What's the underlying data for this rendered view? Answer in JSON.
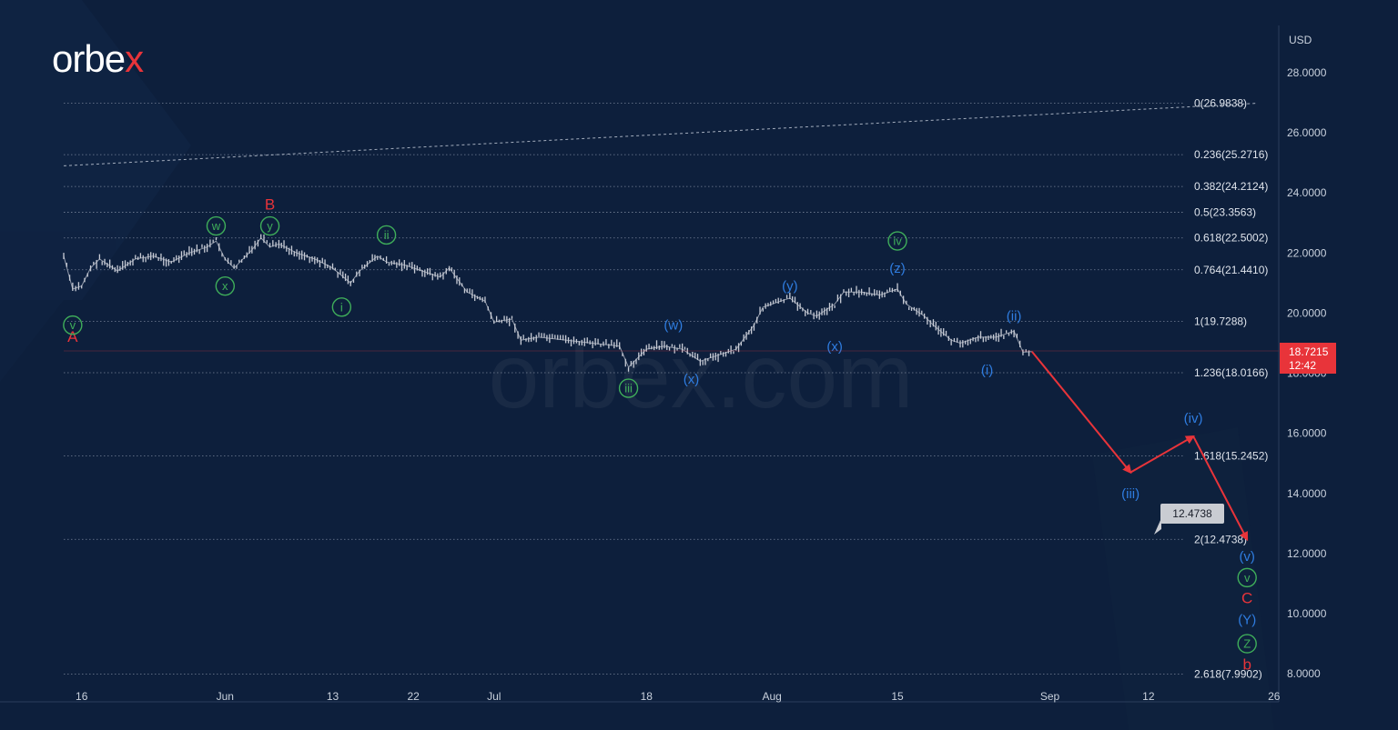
{
  "brand": {
    "logo_text_main": "orbe",
    "logo_text_accent": "x",
    "watermark": "orbex.com",
    "accent_color": "#e8343a"
  },
  "colors": {
    "background": "#0d1f3c",
    "candle": "#c8ccd6",
    "fib_line": "#8a94a8",
    "green_wave": "#3fae5a",
    "blue_wave": "#2f7de1",
    "red_wave": "#e8343a",
    "price_tag": "#e8343a",
    "target_tag": "#c9ccd2"
  },
  "price_axis": {
    "currency": "USD",
    "ticks": [
      "28.0000",
      "26.0000",
      "24.0000",
      "22.0000",
      "20.0000",
      "18.0000",
      "16.0000",
      "14.0000",
      "12.0000",
      "10.0000",
      "8.0000"
    ]
  },
  "time_axis": {
    "ticks": [
      "16",
      "Jun",
      "13",
      "22",
      "Jul",
      "18",
      "Aug",
      "15",
      "Sep",
      "12",
      "26"
    ]
  },
  "current_price": {
    "value": "18.7215",
    "countdown": "12:42"
  },
  "target_label": "12.4738",
  "chart_data": {
    "type": "line",
    "title": "",
    "ylabel": "USD",
    "ylim": [
      7.5,
      29.5
    ],
    "log_scale": false,
    "grid": false,
    "fib_levels": [
      {
        "label": "0(26.9838)",
        "value": 26.9838
      },
      {
        "label": "0.236(25.2716)",
        "value": 25.2716
      },
      {
        "label": "0.382(24.2124)",
        "value": 24.2124
      },
      {
        "label": "0.5(23.3563)",
        "value": 23.3563
      },
      {
        "label": "0.618(22.5002)",
        "value": 22.5002
      },
      {
        "label": "0.764(21.4410)",
        "value": 21.441
      },
      {
        "label": "1(19.7288)",
        "value": 19.7288
      },
      {
        "label": "1.236(18.0166)",
        "value": 18.0166
      },
      {
        "label": "1.618(15.2452)",
        "value": 15.2452
      },
      {
        "label": "2(12.4738)",
        "value": 12.4738
      },
      {
        "label": "2.618(7.9902)",
        "value": 7.9902
      }
    ],
    "price_path": [
      {
        "x": "May 14",
        "y": 21.9
      },
      {
        "x": "May 15",
        "y": 20.8
      },
      {
        "x": "May 16",
        "y": 20.9
      },
      {
        "x": "May 17",
        "y": 21.5
      },
      {
        "x": "May 18",
        "y": 21.8
      },
      {
        "x": "May 20",
        "y": 21.4
      },
      {
        "x": "May 22",
        "y": 21.8
      },
      {
        "x": "May 24",
        "y": 21.9
      },
      {
        "x": "May 26",
        "y": 21.7
      },
      {
        "x": "May 28",
        "y": 22.0
      },
      {
        "x": "May 30",
        "y": 22.2
      },
      {
        "x": "May 31",
        "y": 22.4
      },
      {
        "x": "Jun 1",
        "y": 21.8
      },
      {
        "x": "Jun 2",
        "y": 21.5
      },
      {
        "x": "Jun 4",
        "y": 22.1
      },
      {
        "x": "Jun 5",
        "y": 22.5
      },
      {
        "x": "Jun 6",
        "y": 22.2
      },
      {
        "x": "Jun 7",
        "y": 22.3
      },
      {
        "x": "Jun 9",
        "y": 22.0
      },
      {
        "x": "Jun 11",
        "y": 21.8
      },
      {
        "x": "Jun 13",
        "y": 21.5
      },
      {
        "x": "Jun 15",
        "y": 21.0
      },
      {
        "x": "Jun 16",
        "y": 21.4
      },
      {
        "x": "Jun 18",
        "y": 21.9
      },
      {
        "x": "Jun 19",
        "y": 21.7
      },
      {
        "x": "Jun 21",
        "y": 21.6
      },
      {
        "x": "Jun 23",
        "y": 21.4
      },
      {
        "x": "Jun 25",
        "y": 21.2
      },
      {
        "x": "Jun 26",
        "y": 21.5
      },
      {
        "x": "Jun 28",
        "y": 20.7
      },
      {
        "x": "Jun 30",
        "y": 20.4
      },
      {
        "x": "Jul 1",
        "y": 19.7
      },
      {
        "x": "Jul 3",
        "y": 19.8
      },
      {
        "x": "Jul 4",
        "y": 19.1
      },
      {
        "x": "Jul 6",
        "y": 19.2
      },
      {
        "x": "Jul 9",
        "y": 19.1
      },
      {
        "x": "Jul 12",
        "y": 19.0
      },
      {
        "x": "Jul 15",
        "y": 18.9
      },
      {
        "x": "Jul 16",
        "y": 18.2
      },
      {
        "x": "Jul 18",
        "y": 18.8
      },
      {
        "x": "Jul 20",
        "y": 18.9
      },
      {
        "x": "Jul 22",
        "y": 18.8
      },
      {
        "x": "Jul 24",
        "y": 18.4
      },
      {
        "x": "Jul 26",
        "y": 18.6
      },
      {
        "x": "Jul 28",
        "y": 18.8
      },
      {
        "x": "Jul 30",
        "y": 19.6
      },
      {
        "x": "Jul 31",
        "y": 20.2
      },
      {
        "x": "Aug 2",
        "y": 20.4
      },
      {
        "x": "Aug 3",
        "y": 20.5
      },
      {
        "x": "Aug 5",
        "y": 20.0
      },
      {
        "x": "Aug 6",
        "y": 19.9
      },
      {
        "x": "Aug 8",
        "y": 20.3
      },
      {
        "x": "Aug 9",
        "y": 20.7
      },
      {
        "x": "Aug 11",
        "y": 20.7
      },
      {
        "x": "Aug 13",
        "y": 20.6
      },
      {
        "x": "Aug 15",
        "y": 20.8
      },
      {
        "x": "Aug 16",
        "y": 20.3
      },
      {
        "x": "Aug 18",
        "y": 19.9
      },
      {
        "x": "Aug 19",
        "y": 19.6
      },
      {
        "x": "Aug 21",
        "y": 19.1
      },
      {
        "x": "Aug 22",
        "y": 19.0
      },
      {
        "x": "Aug 24",
        "y": 19.2
      },
      {
        "x": "Aug 26",
        "y": 19.2
      },
      {
        "x": "Aug 28",
        "y": 19.4
      },
      {
        "x": "Aug 29",
        "y": 18.7
      },
      {
        "x": "Aug 30",
        "y": 18.72
      }
    ],
    "projection": [
      {
        "x": "Aug 30",
        "y": 18.72
      },
      {
        "x": "Sep 10",
        "y": 14.7
      },
      {
        "x": "Sep 17",
        "y": 15.9
      },
      {
        "x": "Sep 23",
        "y": 12.47
      }
    ],
    "trendline": [
      {
        "x": "May 14",
        "y": 24.9
      },
      {
        "x": "Sep 24",
        "y": 26.98
      }
    ],
    "wave_labels": [
      {
        "text": "A",
        "x": "May 15",
        "y": 19.2,
        "style": "red"
      },
      {
        "text": "v",
        "x": "May 15",
        "y": 19.6,
        "style": "green-circle"
      },
      {
        "text": "w",
        "x": "May 31",
        "y": 22.9,
        "style": "green-circle"
      },
      {
        "text": "x",
        "x": "Jun 1",
        "y": 20.9,
        "style": "green-circle"
      },
      {
        "text": "B",
        "x": "Jun 6",
        "y": 23.6,
        "style": "red"
      },
      {
        "text": "y",
        "x": "Jun 6",
        "y": 22.9,
        "style": "green-circle"
      },
      {
        "text": "i",
        "x": "Jun 14",
        "y": 20.2,
        "style": "green-circle"
      },
      {
        "text": "ii",
        "x": "Jun 19",
        "y": 22.6,
        "style": "green-circle"
      },
      {
        "text": "iii",
        "x": "Jul 16",
        "y": 17.5,
        "style": "green-circle"
      },
      {
        "text": "(w)",
        "x": "Jul 21",
        "y": 19.6,
        "style": "blue"
      },
      {
        "text": "(x)",
        "x": "Jul 23",
        "y": 17.8,
        "style": "blue"
      },
      {
        "text": "(y)",
        "x": "Aug 3",
        "y": 20.9,
        "style": "blue"
      },
      {
        "text": "(x)",
        "x": "Aug 8",
        "y": 18.9,
        "style": "blue"
      },
      {
        "text": "iv",
        "x": "Aug 15",
        "y": 22.4,
        "style": "green-circle"
      },
      {
        "text": "(z)",
        "x": "Aug 15",
        "y": 21.5,
        "style": "blue"
      },
      {
        "text": "(i)",
        "x": "Aug 25",
        "y": 18.1,
        "style": "blue"
      },
      {
        "text": "(ii)",
        "x": "Aug 28",
        "y": 19.9,
        "style": "blue"
      },
      {
        "text": "(iii)",
        "x": "Sep 10",
        "y": 14.0,
        "style": "blue"
      },
      {
        "text": "(iv)",
        "x": "Sep 17",
        "y": 16.5,
        "style": "blue"
      },
      {
        "text": "(v)",
        "x": "Sep 23",
        "y": 11.9,
        "style": "blue"
      },
      {
        "text": "v",
        "x": "Sep 23",
        "y": 11.2,
        "style": "green-circle"
      },
      {
        "text": "C",
        "x": "Sep 23",
        "y": 10.5,
        "style": "red"
      },
      {
        "text": "(Y)",
        "x": "Sep 23",
        "y": 9.8,
        "style": "blue"
      },
      {
        "text": "Z",
        "x": "Sep 23",
        "y": 9.0,
        "style": "green-circle"
      },
      {
        "text": "b",
        "x": "Sep 23",
        "y": 8.3,
        "style": "red"
      }
    ]
  }
}
